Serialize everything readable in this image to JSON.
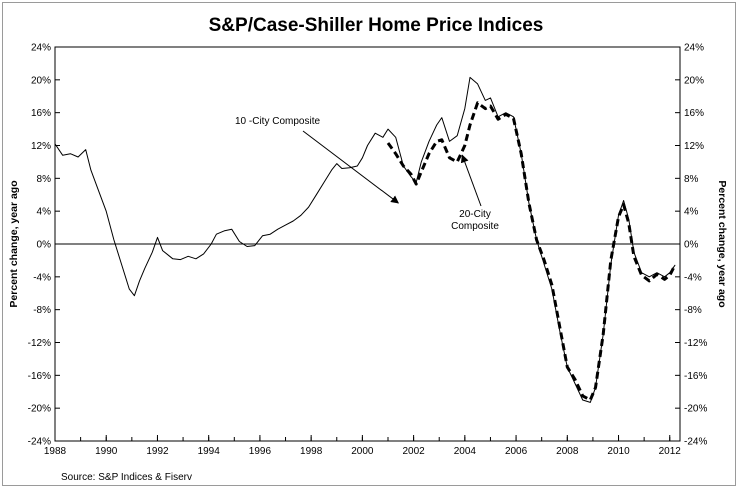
{
  "chart_data": {
    "type": "line",
    "title": "S&P/Case-Shiller Home Price Indices",
    "ylabel_left": "Percent change, year ago",
    "ylabel_right": "Percent change, year ago",
    "source": "Source: S&P Indices & Fiserv",
    "ylim": [
      -24,
      24
    ],
    "xlim": [
      1988,
      2012.4
    ],
    "y_ticks": [
      {
        "value": 24,
        "label": "24%"
      },
      {
        "value": 20,
        "label": "20%"
      },
      {
        "value": 16,
        "label": "16%"
      },
      {
        "value": 12,
        "label": "12%"
      },
      {
        "value": 8,
        "label": "8%"
      },
      {
        "value": 4,
        "label": "4%"
      },
      {
        "value": 0,
        "label": "0%"
      },
      {
        "value": -4,
        "label": "-4%"
      },
      {
        "value": -8,
        "label": "-8%"
      },
      {
        "value": -12,
        "label": "-12%"
      },
      {
        "value": -16,
        "label": "-16%"
      },
      {
        "value": -20,
        "label": "-20%"
      },
      {
        "value": -24,
        "label": "-24%"
      }
    ],
    "x_ticks": [
      {
        "value": 1988,
        "label": "1988"
      },
      {
        "value": 1990,
        "label": "1990"
      },
      {
        "value": 1992,
        "label": "1992"
      },
      {
        "value": 1994,
        "label": "1994"
      },
      {
        "value": 1996,
        "label": "1996"
      },
      {
        "value": 1998,
        "label": "1998"
      },
      {
        "value": 2000,
        "label": "2000"
      },
      {
        "value": 2002,
        "label": "2002"
      },
      {
        "value": 2004,
        "label": "2004"
      },
      {
        "value": 2006,
        "label": "2006"
      },
      {
        "value": 2008,
        "label": "2008"
      },
      {
        "value": 2010,
        "label": "2010"
      },
      {
        "value": 2012,
        "label": "2012"
      }
    ],
    "series": [
      {
        "name": "10 -City Composite",
        "style": "solid",
        "color": "#000000",
        "x": [
          1988.0,
          1988.3,
          1988.6,
          1988.9,
          1989.2,
          1989.4,
          1989.7,
          1990.0,
          1990.3,
          1990.6,
          1990.9,
          1991.1,
          1991.3,
          1991.5,
          1991.8,
          1992.0,
          1992.2,
          1992.4,
          1992.6,
          1992.9,
          1993.2,
          1993.5,
          1993.8,
          1994.1,
          1994.3,
          1994.6,
          1994.9,
          1995.2,
          1995.5,
          1995.8,
          1996.1,
          1996.4,
          1996.7,
          1997.0,
          1997.3,
          1997.6,
          1997.9,
          1998.2,
          1998.5,
          1998.8,
          1999.0,
          1999.2,
          1999.5,
          1999.8,
          2000.0,
          2000.2,
          2000.5,
          2000.8,
          2001.0,
          2001.3,
          2001.6,
          2001.9,
          2002.1,
          2002.3,
          2002.6,
          2002.9,
          2003.1,
          2003.4,
          2003.7,
          2004.0,
          2004.2,
          2004.5,
          2004.8,
          2005.0,
          2005.3,
          2005.6,
          2005.9,
          2006.2,
          2006.5,
          2006.8,
          2007.1,
          2007.4,
          2007.7,
          2008.0,
          2008.3,
          2008.6,
          2008.9,
          2009.1,
          2009.4,
          2009.7,
          2010.0,
          2010.2,
          2010.4,
          2010.6,
          2010.9,
          2011.2,
          2011.5,
          2011.8,
          2012.0,
          2012.2
        ],
        "y": [
          12.2,
          10.8,
          11.0,
          10.6,
          11.5,
          9.0,
          6.5,
          4.0,
          0.5,
          -2.5,
          -5.5,
          -6.3,
          -4.5,
          -3.0,
          -1.0,
          0.8,
          -0.8,
          -1.3,
          -1.8,
          -1.9,
          -1.5,
          -1.8,
          -1.2,
          0.0,
          1.2,
          1.6,
          1.8,
          0.3,
          -0.3,
          -0.2,
          1.0,
          1.2,
          1.8,
          2.3,
          2.8,
          3.5,
          4.5,
          6.0,
          7.5,
          9.0,
          9.8,
          9.2,
          9.3,
          9.5,
          10.5,
          12.0,
          13.5,
          13.0,
          14.0,
          13.0,
          9.5,
          8.2,
          7.5,
          10.0,
          12.5,
          14.5,
          15.4,
          12.5,
          13.2,
          16.5,
          20.3,
          19.5,
          17.5,
          17.8,
          15.5,
          16.0,
          15.5,
          11.0,
          5.0,
          0.5,
          -2.5,
          -5.5,
          -10.5,
          -15.0,
          -17.0,
          -19.0,
          -19.3,
          -17.5,
          -11.0,
          -2.5,
          3.5,
          5.3,
          3.0,
          -1.0,
          -3.5,
          -4.0,
          -3.5,
          -4.0,
          -3.5,
          -2.6
        ]
      },
      {
        "name": "20-City Composite",
        "style": "dashed",
        "color": "#000000",
        "x": [
          2001.0,
          2001.3,
          2001.6,
          2001.9,
          2002.1,
          2002.3,
          2002.6,
          2002.9,
          2003.1,
          2003.4,
          2003.7,
          2004.0,
          2004.2,
          2004.5,
          2004.8,
          2005.0,
          2005.3,
          2005.6,
          2005.9,
          2006.2,
          2006.5,
          2006.8,
          2007.1,
          2007.4,
          2007.7,
          2008.0,
          2008.3,
          2008.6,
          2008.9,
          2009.1,
          2009.4,
          2009.7,
          2010.0,
          2010.2,
          2010.4,
          2010.6,
          2010.9,
          2011.2,
          2011.5,
          2011.8,
          2012.0,
          2012.2
        ],
        "y": [
          12.3,
          11.0,
          9.5,
          8.5,
          7.3,
          8.8,
          11.0,
          12.5,
          12.7,
          10.5,
          10.0,
          12.0,
          14.5,
          17.2,
          16.5,
          16.8,
          15.2,
          15.8,
          15.3,
          11.0,
          5.0,
          0.5,
          -2.0,
          -5.0,
          -10.0,
          -15.0,
          -16.5,
          -18.5,
          -19.0,
          -17.5,
          -11.0,
          -2.0,
          3.3,
          4.8,
          2.5,
          -1.5,
          -3.8,
          -4.5,
          -3.7,
          -4.3,
          -3.8,
          -2.6
        ]
      }
    ],
    "annotations": [
      {
        "lines": [
          "10 -City Composite"
        ],
        "arrow_to": {
          "x": 2001.4,
          "y": 5.0
        }
      },
      {
        "lines": [
          "20-City",
          "Composite"
        ],
        "arrow_to": {
          "x": 2003.9,
          "y": 10.8
        }
      }
    ]
  }
}
